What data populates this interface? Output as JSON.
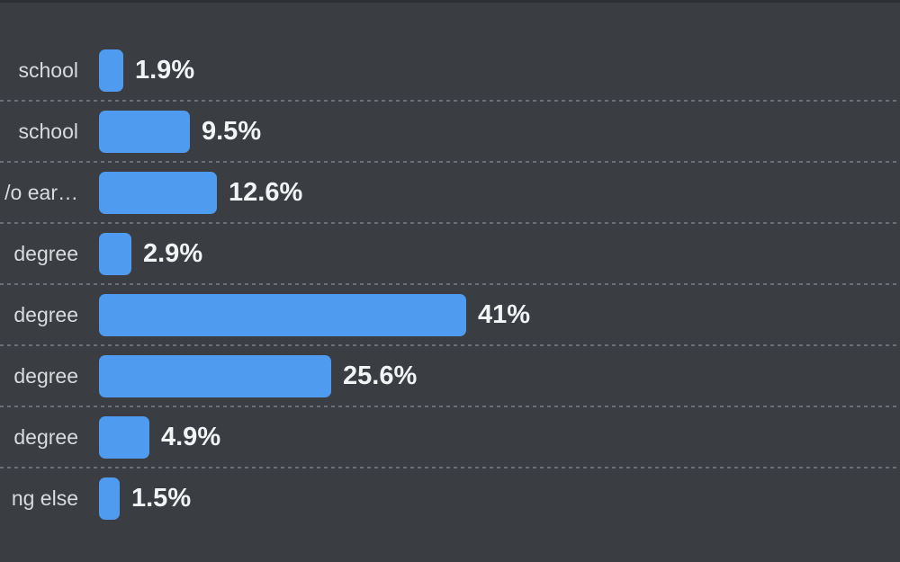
{
  "colors": {
    "background": "#3a3e42",
    "bar": "#4e9bf0",
    "label_text": "#d9dbdd",
    "value_text": "#f2f3f5",
    "separator": "#6b7077",
    "top_strip": "#2e3134"
  },
  "chart_data": {
    "type": "bar",
    "orientation": "horizontal",
    "title": "",
    "xlabel": "",
    "ylabel": "",
    "legend": "none",
    "gridlines": "dashed-row-separators",
    "categories": [
      "school",
      "school",
      "/o ear…",
      "degree",
      "degree",
      "degree",
      "degree",
      "ng else"
    ],
    "values": [
      1.9,
      9.5,
      12.6,
      2.9,
      41,
      25.6,
      4.9,
      1.5
    ],
    "value_labels": [
      "1.9%",
      "9.5%",
      "12.6%",
      "2.9%",
      "41%",
      "25.6%",
      "4.9%",
      "1.5%"
    ]
  }
}
